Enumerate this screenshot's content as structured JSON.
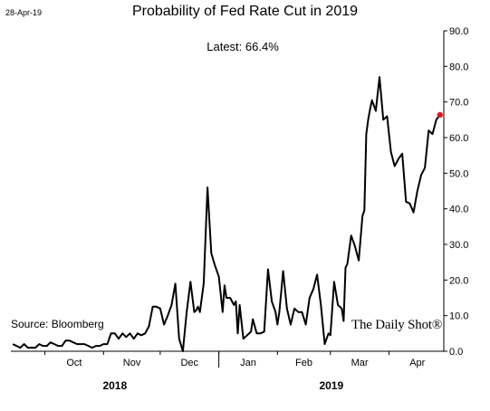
{
  "header": {
    "date_stamp": "28-Apr-19",
    "latest_label": "Latest:  66.4%",
    "source": "Source: Bloomberg",
    "watermark": "The Daily Shot®"
  },
  "style": {
    "line_color": "#000000",
    "marker_color": "#e8141c"
  },
  "chart_data": {
    "type": "line",
    "title": "Probability of Fed Rate Cut in 2019",
    "xlabel": "",
    "ylabel": "",
    "ylim": [
      0,
      90
    ],
    "y_ticks": [
      "0.0",
      "10.0",
      "20.0",
      "30.0",
      "40.0",
      "50.0",
      "60.0",
      "70.0",
      "80.0",
      "90.0"
    ],
    "x_ticks": [
      "Oct",
      "Nov",
      "Dec",
      "Jan",
      "Feb",
      "Mar",
      "Apr"
    ],
    "year_labels": [
      "2018",
      "2019"
    ],
    "grid": false,
    "y_axis_side": "right",
    "last_point_marker": true,
    "series": [
      {
        "x": [
          "2018-09-14",
          "2018-09-16",
          "2018-09-18",
          "2018-09-20",
          "2018-09-22",
          "2018-09-24",
          "2018-09-26",
          "2018-09-28",
          "2018-09-30",
          "2018-10-02",
          "2018-10-04",
          "2018-10-06",
          "2018-10-08",
          "2018-10-10",
          "2018-10-12",
          "2018-10-14",
          "2018-10-16",
          "2018-10-18",
          "2018-10-20",
          "2018-10-22",
          "2018-10-24",
          "2018-10-26",
          "2018-10-28",
          "2018-10-30",
          "2018-11-01",
          "2018-11-03",
          "2018-11-05",
          "2018-11-07",
          "2018-11-09",
          "2018-11-11",
          "2018-11-13",
          "2018-11-15",
          "2018-11-17",
          "2018-11-19",
          "2018-11-21",
          "2018-11-23",
          "2018-11-25",
          "2018-11-27",
          "2018-11-29",
          "2018-12-01",
          "2018-12-03",
          "2018-12-05",
          "2018-12-07",
          "2018-12-09",
          "2018-12-11",
          "2018-12-13",
          "2018-12-15",
          "2018-12-17",
          "2018-12-19",
          "2018-12-20",
          "2018-12-21",
          "2018-12-22",
          "2018-12-24",
          "2018-12-26",
          "2018-12-28",
          "2018-12-30",
          "2019-01-01",
          "2019-01-03",
          "2019-01-04",
          "2019-01-05",
          "2019-01-07",
          "2019-01-09",
          "2019-01-10",
          "2019-01-11",
          "2019-01-12",
          "2019-01-14",
          "2019-01-16",
          "2019-01-18",
          "2019-01-19",
          "2019-01-21",
          "2019-01-23",
          "2019-01-25",
          "2019-01-27",
          "2019-01-29",
          "2019-01-31",
          "2019-02-01",
          "2019-02-02",
          "2019-02-04",
          "2019-02-06",
          "2019-02-08",
          "2019-02-10",
          "2019-02-12",
          "2019-02-14",
          "2019-02-16",
          "2019-02-18",
          "2019-02-20",
          "2019-02-22",
          "2019-02-24",
          "2019-02-26",
          "2019-02-28",
          "2019-03-01",
          "2019-03-03",
          "2019-03-05",
          "2019-03-07",
          "2019-03-08",
          "2019-03-09",
          "2019-03-10",
          "2019-03-12",
          "2019-03-14",
          "2019-03-16",
          "2019-03-18",
          "2019-03-19",
          "2019-03-20",
          "2019-03-21",
          "2019-03-22",
          "2019-03-23",
          "2019-03-25",
          "2019-03-27",
          "2019-03-29",
          "2019-03-31",
          "2019-04-02",
          "2019-04-04",
          "2019-04-06",
          "2019-04-08",
          "2019-04-10",
          "2019-04-12",
          "2019-04-14",
          "2019-04-16",
          "2019-04-18",
          "2019-04-20",
          "2019-04-22",
          "2019-04-24",
          "2019-04-26",
          "2019-04-28"
        ],
        "y": [
          2.0,
          1.5,
          1.0,
          2.0,
          1.0,
          1.0,
          1.0,
          2.0,
          1.5,
          1.5,
          2.5,
          2.0,
          1.5,
          1.5,
          3.0,
          3.0,
          2.5,
          2.0,
          2.0,
          2.0,
          1.5,
          1.0,
          1.5,
          1.5,
          2.0,
          2.0,
          5.0,
          5.0,
          3.5,
          5.0,
          4.0,
          5.0,
          3.5,
          5.0,
          4.5,
          5.0,
          7.0,
          12.5,
          12.5,
          12.0,
          7.5,
          10.0,
          13.0,
          19.0,
          3.5,
          0.0,
          11.0,
          19.5,
          11.0,
          11.5,
          12.5,
          11.0,
          19.0,
          46.0,
          27.5,
          24.0,
          21.0,
          11.0,
          18.5,
          15.0,
          15.0,
          13.0,
          14.0,
          5.0,
          13.0,
          3.5,
          4.5,
          5.5,
          9.0,
          5.0,
          5.0,
          5.5,
          23.0,
          14.0,
          11.0,
          7.5,
          11.0,
          22.5,
          12.0,
          7.5,
          12.0,
          11.0,
          11.0,
          7.5,
          15.0,
          17.5,
          21.5,
          13.0,
          2.0,
          5.0,
          4.5,
          19.5,
          13.0,
          12.0,
          8.5,
          23.5,
          24.5,
          32.5,
          29.5,
          25.5,
          38.0,
          39.5,
          61.0,
          65.0,
          68.0,
          70.5,
          67.5,
          77.0,
          65.0,
          66.0,
          56.0,
          52.0,
          54.0,
          55.5,
          42.0,
          41.5,
          39.0,
          45.0,
          49.5,
          51.5,
          62.0,
          61.0,
          65.0,
          66.4
        ]
      }
    ]
  }
}
